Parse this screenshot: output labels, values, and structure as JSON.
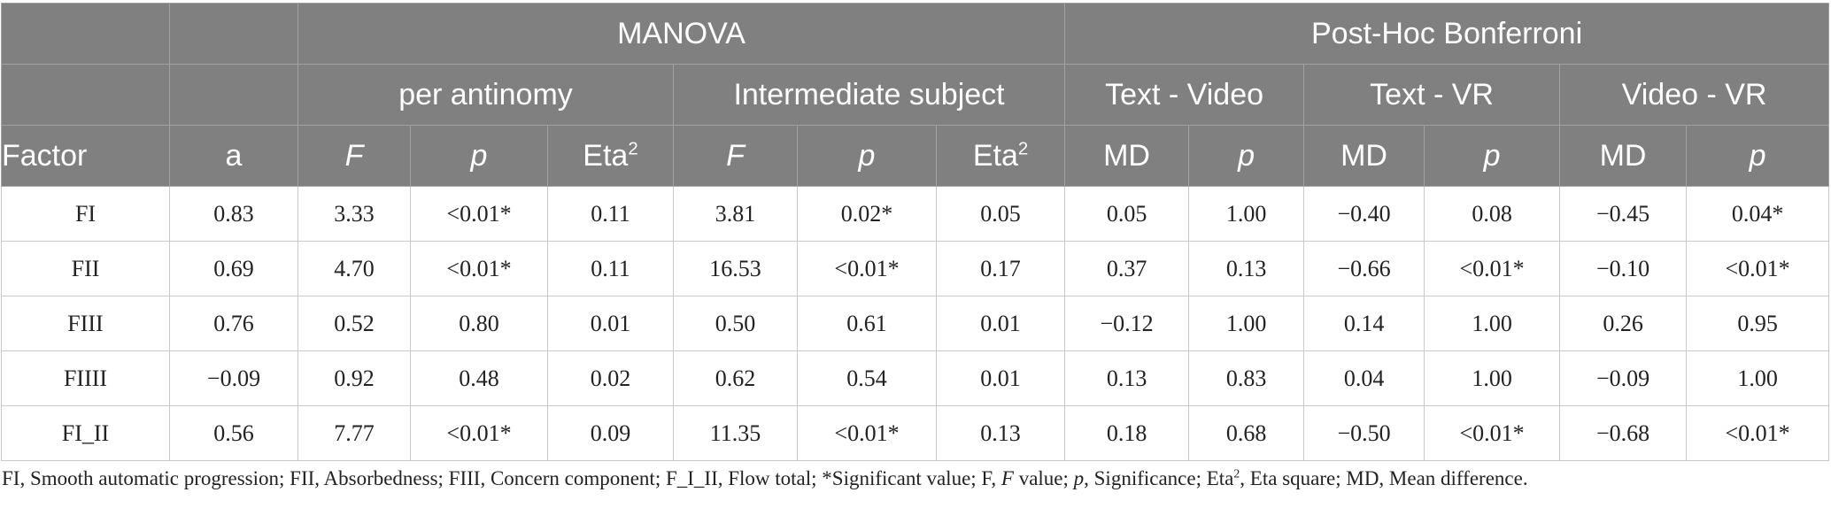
{
  "table": {
    "group_manova": "MANOVA",
    "group_posthoc": "Post-Hoc Bonferroni",
    "sub_per_antinomy": "per antinomy",
    "sub_intermediate": "Intermediate subject",
    "sub_text_video": "Text - Video",
    "sub_text_vr": "Text - VR",
    "sub_video_vr": "Video - VR",
    "col_factor": "Factor",
    "col_a": "a",
    "col_F": "F",
    "col_p": "p",
    "col_eta": "Eta",
    "col_eta_sup": "2",
    "col_MD": "MD",
    "rows": [
      {
        "factor": "FI",
        "cells": [
          "0.83",
          "3.33",
          "<0.01*",
          "0.11",
          "3.81",
          "0.02*",
          "0.05",
          "0.05",
          "1.00",
          "−0.40",
          "0.08",
          "−0.45",
          "0.04*"
        ]
      },
      {
        "factor": "FII",
        "cells": [
          "0.69",
          "4.70",
          "<0.01*",
          "0.11",
          "16.53",
          "<0.01*",
          "0.17",
          "0.37",
          "0.13",
          "−0.66",
          "<0.01*",
          "−0.10",
          "<0.01*"
        ]
      },
      {
        "factor": "FIII",
        "cells": [
          "0.76",
          "0.52",
          "0.80",
          "0.01",
          "0.50",
          "0.61",
          "0.01",
          "−0.12",
          "1.00",
          "0.14",
          "1.00",
          "0.26",
          "0.95"
        ]
      },
      {
        "factor": "FIIII",
        "cells": [
          "−0.09",
          "0.92",
          "0.48",
          "0.02",
          "0.62",
          "0.54",
          "0.01",
          "0.13",
          "0.83",
          "0.04",
          "1.00",
          "−0.09",
          "1.00"
        ]
      },
      {
        "factor": "FI_II",
        "cells": [
          "0.56",
          "7.77",
          "<0.01*",
          "0.09",
          "11.35",
          "<0.01*",
          "0.13",
          "0.18",
          "0.68",
          "−0.50",
          "<0.01*",
          "−0.68",
          "<0.01*"
        ]
      }
    ]
  },
  "footnote": {
    "part1": "FI, Smooth automatic progression; FII, Absorbedness; FIII, Concern component; F_I_II, Flow total; *Significant value; F, ",
    "part2": "F",
    "part3": " value; ",
    "part4": "p",
    "part5": ", Significance; Eta",
    "part6": "2",
    "part7": ", Eta square; MD, Mean difference."
  }
}
